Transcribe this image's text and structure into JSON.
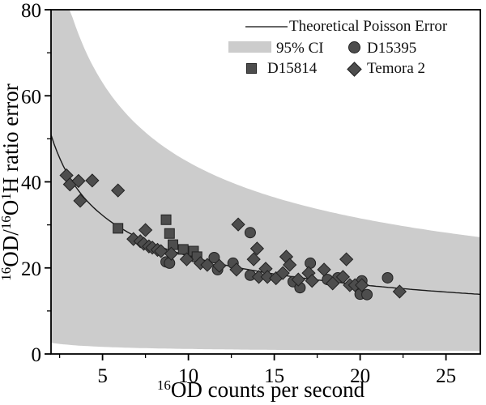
{
  "colors": {
    "marker_fill": "#4d4d4d",
    "marker_edge": "#222222",
    "band_fill": "#cccccc",
    "curve_stroke": "#1a1a1a",
    "axis_stroke": "#000000",
    "background": "#ffffff"
  },
  "legend": {
    "poisson_label": "Theoretical Poisson Error",
    "ci_label": "95% CI",
    "d15395_label": "D15395",
    "d15814_label": "D15814",
    "temora_label": "Temora 2"
  },
  "chart_data": {
    "type": "scatter",
    "title": "",
    "xlabel": "¹⁶OD counts per second",
    "ylabel": "¹⁶OD/¹⁶O¹H ratio error",
    "x_label_segments": [
      {
        "text": "16",
        "sup": true
      },
      {
        "text": "OD counts per second",
        "sup": false
      }
    ],
    "y_label_segments": [
      {
        "text": "16",
        "sup": true
      },
      {
        "text": "OD/",
        "sup": false
      },
      {
        "text": "16",
        "sup": true
      },
      {
        "text": "O",
        "sup": false
      },
      {
        "text": "1",
        "sup": true
      },
      {
        "text": "H ratio error",
        "sup": false
      }
    ],
    "xlim": [
      2,
      27
    ],
    "ylim": [
      0,
      80
    ],
    "x_major_ticks": [
      5,
      10,
      15,
      20,
      25
    ],
    "x_minor_ticks": [
      2.5,
      7.5,
      12.5,
      17.5,
      22.5
    ],
    "y_major_ticks": [
      0,
      20,
      40,
      60,
      80
    ],
    "y_minor_ticks": [
      10,
      30,
      50,
      70
    ],
    "grid": false,
    "legend_position": "top-right-inside",
    "curve": {
      "name": "Theoretical Poisson Error",
      "model": "y = 72 / sqrt(x)",
      "coefficient": 72
    },
    "band": {
      "name": "95% CI",
      "upper_model": "y = 141 / sqrt(x), clipped at y = 80",
      "upper_coefficient": 141,
      "lower_model": "y = 3.7 / sqrt(x)",
      "lower_coefficient": 3.7
    },
    "series": [
      {
        "name": "D15395",
        "marker": "circle",
        "points": [
          [
            8.7,
            21.4
          ],
          [
            8.9,
            21.1
          ],
          [
            11.5,
            22.4
          ],
          [
            11.7,
            19.6
          ],
          [
            12.6,
            21.1
          ],
          [
            13.6,
            28.2
          ],
          [
            13.6,
            18.3
          ],
          [
            16.1,
            16.8
          ],
          [
            16.5,
            15.4
          ],
          [
            17.1,
            21.1
          ],
          [
            18.1,
            17.3
          ],
          [
            18.7,
            17.7
          ],
          [
            20.1,
            17.0
          ],
          [
            20.0,
            13.9
          ],
          [
            20.4,
            13.8
          ],
          [
            21.6,
            17.7
          ]
        ]
      },
      {
        "name": "D15814",
        "marker": "square",
        "points": [
          [
            5.9,
            29.2
          ],
          [
            8.7,
            31.2
          ],
          [
            8.9,
            28.0
          ],
          [
            9.1,
            25.4
          ],
          [
            9.7,
            24.3
          ],
          [
            10.3,
            23.9
          ],
          [
            10.5,
            22.6
          ]
        ]
      },
      {
        "name": "Temora 2",
        "marker": "diamond",
        "points": [
          [
            2.9,
            41.5
          ],
          [
            3.1,
            39.4
          ],
          [
            3.6,
            40.2
          ],
          [
            4.4,
            40.3
          ],
          [
            3.7,
            35.6
          ],
          [
            5.9,
            38.0
          ],
          [
            6.8,
            26.7
          ],
          [
            7.2,
            26.2
          ],
          [
            7.4,
            25.6
          ],
          [
            7.5,
            28.8
          ],
          [
            7.7,
            25.0
          ],
          [
            7.9,
            24.7
          ],
          [
            8.2,
            24.2
          ],
          [
            8.4,
            23.9
          ],
          [
            9.0,
            23.3
          ],
          [
            9.9,
            22.0
          ],
          [
            10.7,
            21.1
          ],
          [
            11.1,
            20.7
          ],
          [
            11.8,
            20.5
          ],
          [
            12.8,
            19.6
          ],
          [
            12.9,
            30.1
          ],
          [
            13.8,
            22.0
          ],
          [
            14.0,
            24.5
          ],
          [
            14.1,
            17.9
          ],
          [
            14.5,
            19.8
          ],
          [
            14.6,
            17.9
          ],
          [
            15.1,
            17.6
          ],
          [
            15.5,
            18.8
          ],
          [
            15.7,
            22.6
          ],
          [
            15.9,
            20.7
          ],
          [
            16.4,
            17.3
          ],
          [
            17.0,
            18.8
          ],
          [
            17.2,
            17.0
          ],
          [
            17.9,
            19.6
          ],
          [
            18.4,
            16.4
          ],
          [
            19.0,
            17.9
          ],
          [
            19.2,
            22.0
          ],
          [
            19.4,
            16.0
          ],
          [
            19.7,
            16.0
          ],
          [
            20.1,
            16.0
          ],
          [
            22.3,
            14.5
          ]
        ]
      }
    ]
  }
}
